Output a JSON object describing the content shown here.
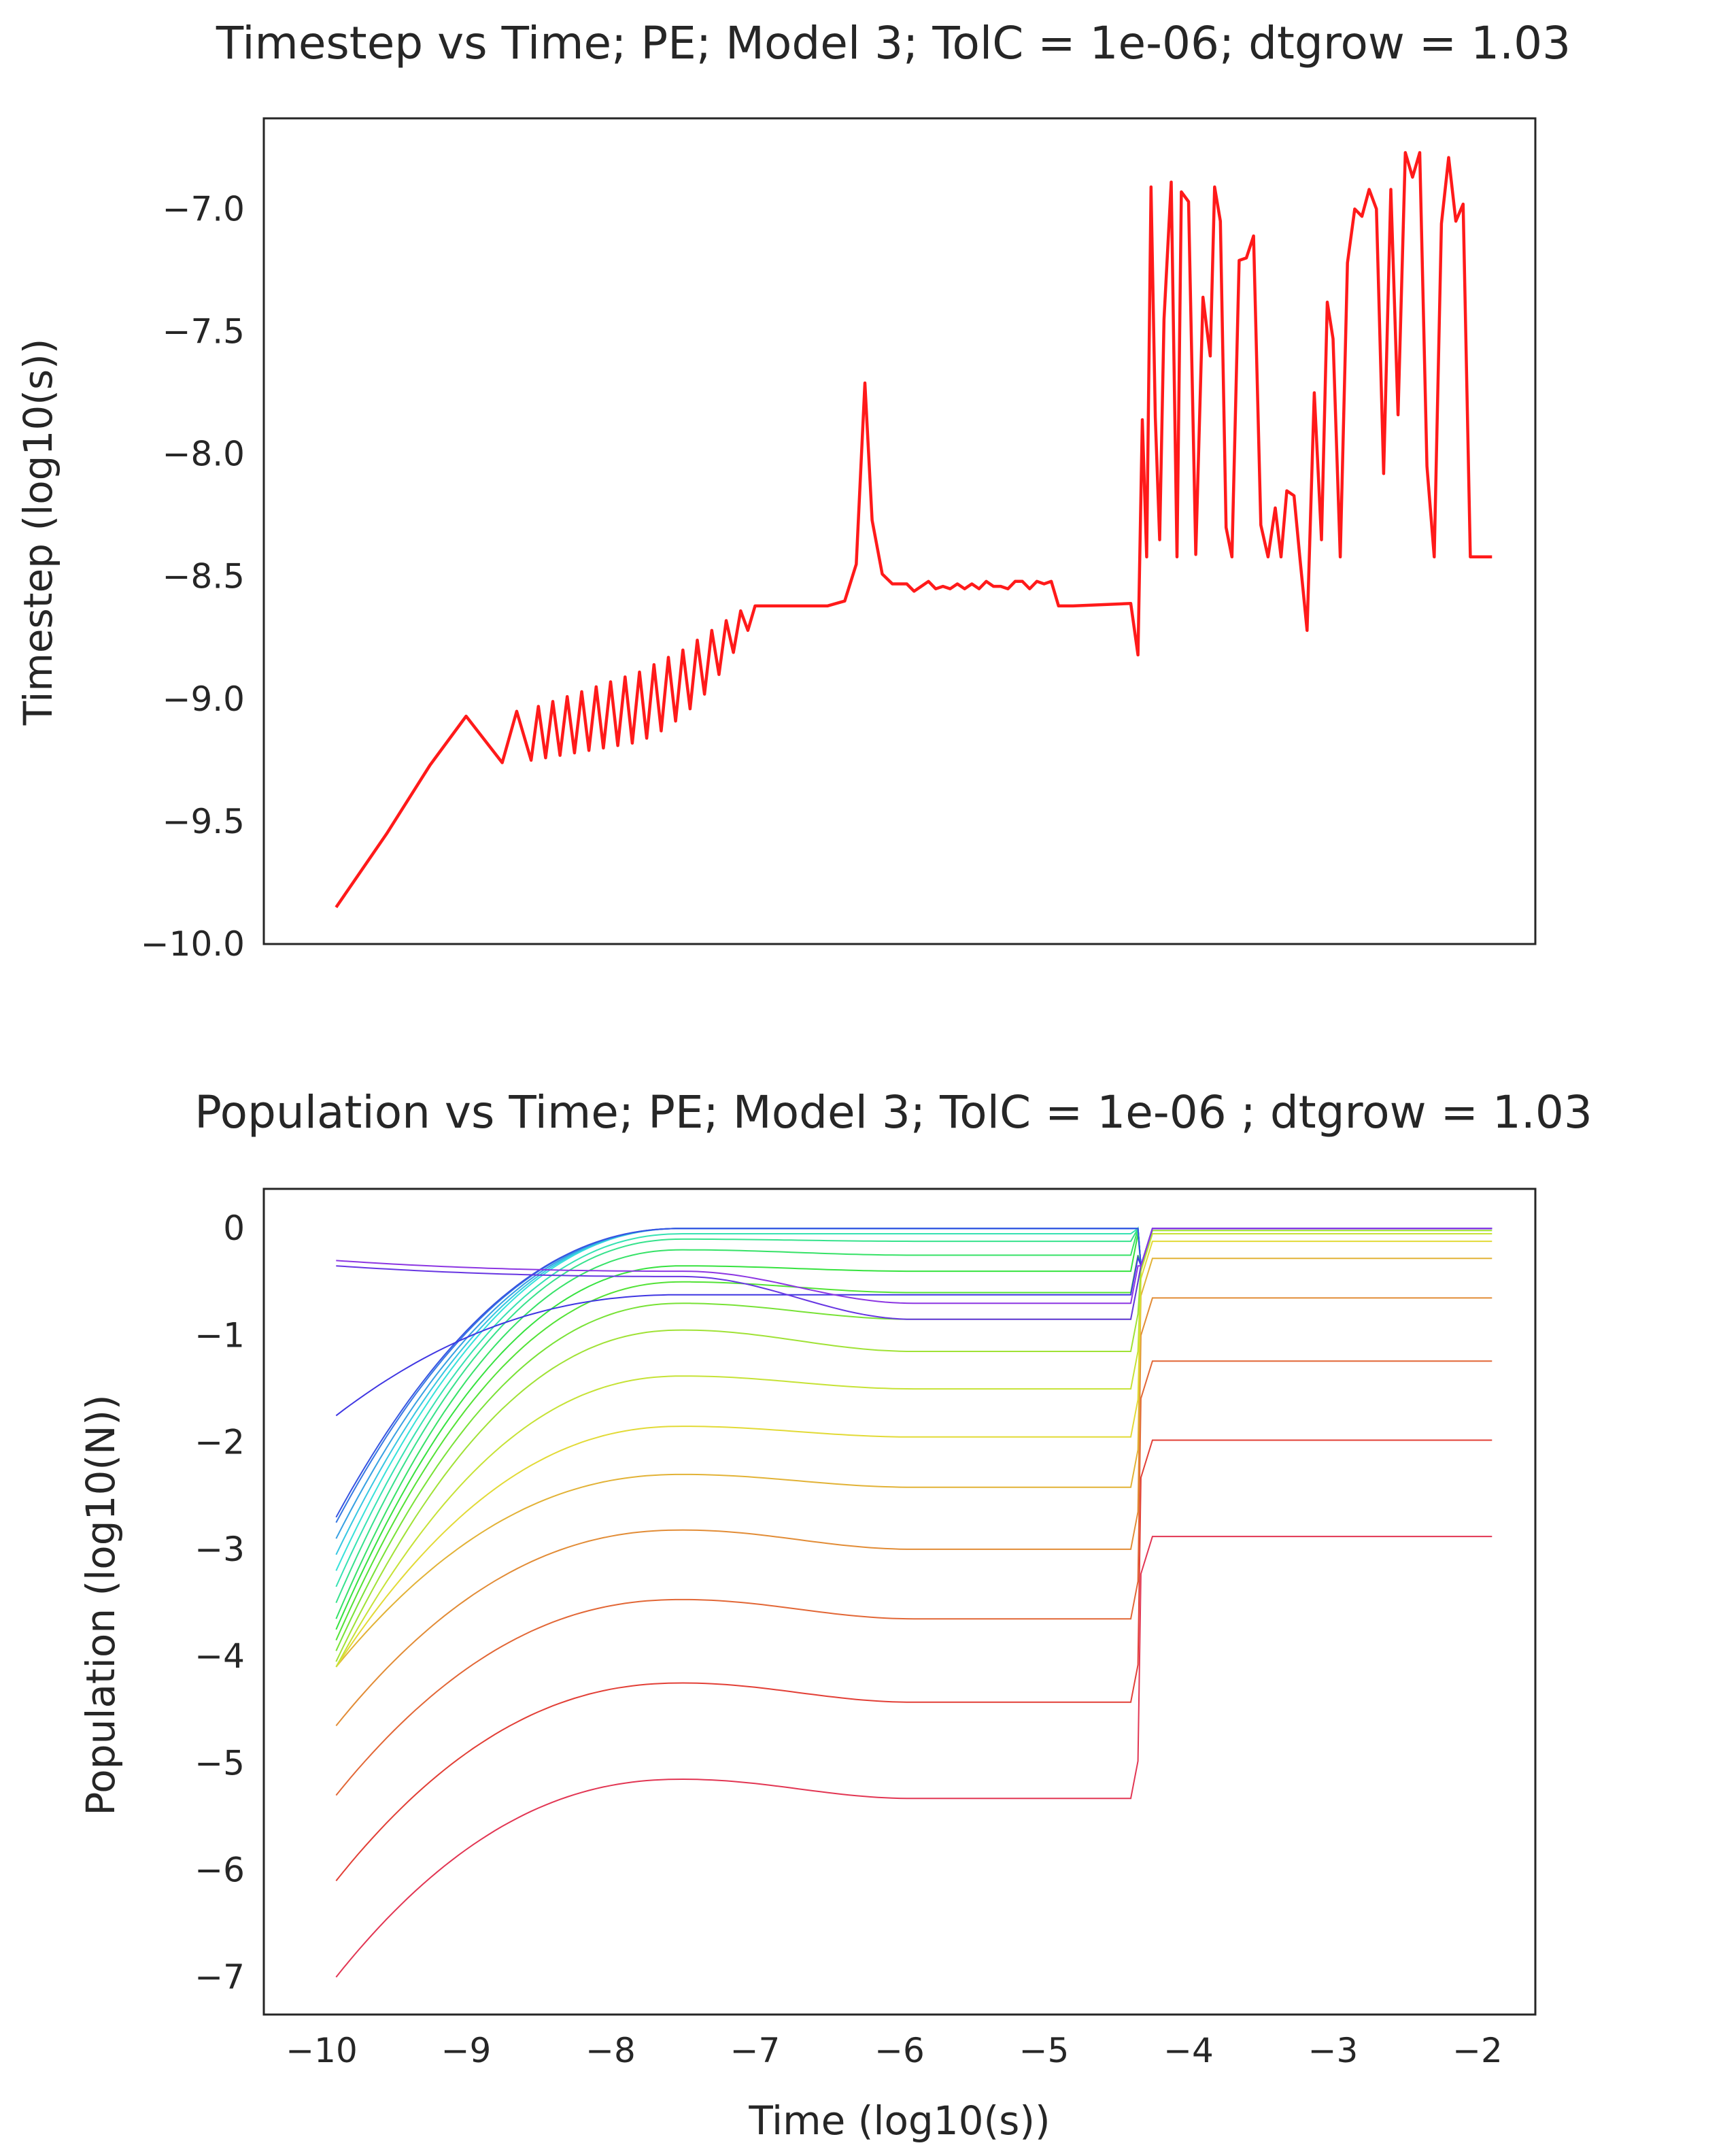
{
  "chart_data": [
    {
      "type": "line",
      "title": "Timestep vs Time; PE; Model 3; TolC = 1e-06; dtgrow = 1.03",
      "xlabel": "",
      "ylabel": "Timestep (log10(s))",
      "xlim": [
        -10.4,
        -1.6
      ],
      "ylim": [
        -10.0,
        -6.63
      ],
      "yticks": [
        -10.0,
        -9.5,
        -9.0,
        -8.5,
        -8.0,
        -7.5,
        -7.0
      ],
      "ytick_labels": [
        "−10.0",
        "−9.5",
        "−9.0",
        "−8.5",
        "−8.0",
        "−7.5",
        "−7.0"
      ],
      "grid": false,
      "color": "#ff1a1a",
      "series": [
        {
          "x": [
            -9.9,
            -9.55,
            -9.25,
            -9.0,
            -8.75,
            -8.65,
            -8.55,
            -8.5,
            -8.45,
            -8.4,
            -8.35,
            -8.3,
            -8.25,
            -8.2,
            -8.15,
            -8.1,
            -8.05,
            -8.0,
            -7.95,
            -7.9,
            -7.85,
            -7.8,
            -7.75,
            -7.7,
            -7.65,
            -7.6,
            -7.55,
            -7.5,
            -7.45,
            -7.4,
            -7.35,
            -7.3,
            -7.25,
            -7.2,
            -7.15,
            -7.1,
            -7.05,
            -7.0,
            -6.95,
            -6.5,
            -6.38,
            -6.3,
            -6.24,
            -6.19,
            -6.12,
            -6.05,
            -6.0,
            -5.95,
            -5.9,
            -5.85,
            -5.8,
            -5.75,
            -5.7,
            -5.65,
            -5.6,
            -5.55,
            -5.5,
            -5.45,
            -5.4,
            -5.35,
            -5.3,
            -5.25,
            -5.2,
            -5.15,
            -5.1,
            -5.05,
            -5.0,
            -4.95,
            -4.9,
            -4.85,
            -4.8,
            -4.4,
            -4.35,
            -4.32,
            -4.29,
            -4.26,
            -4.23,
            -4.2,
            -4.17,
            -4.12,
            -4.08,
            -4.05,
            -4.0,
            -3.95,
            -3.9,
            -3.85,
            -3.82,
            -3.78,
            -3.74,
            -3.7,
            -3.65,
            -3.6,
            -3.55,
            -3.5,
            -3.45,
            -3.4,
            -3.36,
            -3.32,
            -3.27,
            -3.23,
            -3.18,
            -3.13,
            -3.08,
            -3.04,
            -3.0,
            -2.95,
            -2.9,
            -2.85,
            -2.8,
            -2.75,
            -2.7,
            -2.65,
            -2.6,
            -2.55,
            -2.5,
            -2.45,
            -2.4,
            -2.35,
            -2.3,
            -2.25,
            -2.2,
            -2.15,
            -2.1,
            -2.05,
            -2.0,
            -1.95,
            -1.9
          ],
          "y": [
            -9.85,
            -9.55,
            -9.27,
            -9.07,
            -9.26,
            -9.05,
            -9.25,
            -9.03,
            -9.24,
            -9.01,
            -9.23,
            -8.99,
            -9.22,
            -8.97,
            -9.21,
            -8.95,
            -9.2,
            -8.93,
            -9.19,
            -8.91,
            -9.18,
            -8.89,
            -9.16,
            -8.86,
            -9.13,
            -8.83,
            -9.09,
            -8.8,
            -9.04,
            -8.76,
            -8.98,
            -8.72,
            -8.9,
            -8.68,
            -8.81,
            -8.64,
            -8.72,
            -8.62,
            -8.62,
            -8.62,
            -8.6,
            -8.45,
            -7.71,
            -8.27,
            -8.49,
            -8.53,
            -8.53,
            -8.53,
            -8.56,
            -8.54,
            -8.52,
            -8.55,
            -8.54,
            -8.55,
            -8.53,
            -8.55,
            -8.53,
            -8.55,
            -8.52,
            -8.54,
            -8.54,
            -8.55,
            -8.52,
            -8.52,
            -8.55,
            -8.52,
            -8.53,
            -8.52,
            -8.62,
            -8.62,
            -8.62,
            -8.61,
            -8.82,
            -7.86,
            -8.42,
            -6.91,
            -7.85,
            -8.35,
            -7.45,
            -6.89,
            -8.42,
            -6.93,
            -6.97,
            -8.41,
            -7.36,
            -7.6,
            -6.91,
            -7.05,
            -8.3,
            -8.42,
            -7.21,
            -7.2,
            -7.11,
            -8.29,
            -8.42,
            -8.22,
            -8.42,
            -8.15,
            -8.17,
            -8.42,
            -8.72,
            -7.75,
            -8.35,
            -7.38,
            -7.53,
            -8.42,
            -7.22,
            -7.0,
            -7.03,
            -6.92,
            -7.0,
            -8.08,
            -6.92,
            -7.84,
            -6.77,
            -6.87,
            -6.77,
            -8.05,
            -8.42,
            -7.06,
            -6.79,
            -7.05,
            -6.98,
            -8.42,
            -8.42,
            -8.42,
            -8.42
          ],
          "y_note_unused": []
        }
      ]
    },
    {
      "type": "line",
      "title": "Population vs Time; PE; Model 3; TolC = 1e-06 ; dtgrow = 1.03",
      "xlabel": "Time (log10(s))",
      "ylabel": "Population (log10(N))",
      "xlim": [
        -10.4,
        -1.6
      ],
      "ylim": [
        -7.35,
        0.37
      ],
      "xticks": [
        -10,
        -9,
        -8,
        -7,
        -6,
        -5,
        -4,
        -3,
        -2
      ],
      "xtick_labels": [
        "−10",
        "−9",
        "−8",
        "−7",
        "−6",
        "−5",
        "−4",
        "−3",
        "−2"
      ],
      "yticks": [
        -7,
        -6,
        -5,
        -4,
        -3,
        -2,
        -1,
        0
      ],
      "ytick_labels": [
        "−7",
        "−6",
        "−5",
        "−4",
        "−3",
        "−2",
        "−1",
        "0"
      ],
      "grid": false,
      "colormap": "rainbow",
      "x_start": -9.9,
      "x_jump": -4.33,
      "x_end": -1.9,
      "series": [
        {
          "y0": -7.0,
          "peak": -5.15,
          "plateau": -5.33,
          "final": -2.88
        },
        {
          "y0": -6.1,
          "peak": -4.25,
          "plateau": -4.43,
          "final": -1.98
        },
        {
          "y0": -5.3,
          "peak": -3.47,
          "plateau": -3.65,
          "final": -1.24
        },
        {
          "y0": -4.65,
          "peak": -2.82,
          "plateau": -3.0,
          "final": -0.65
        },
        {
          "y0": -4.1,
          "peak": -2.3,
          "plateau": -2.42,
          "final": -0.28
        },
        {
          "y0": -4.1,
          "peak": -1.85,
          "plateau": -1.95,
          "final": -0.12
        },
        {
          "y0": -4.1,
          "peak": -1.38,
          "plateau": -1.5,
          "final": -0.05
        },
        {
          "y0": -4.05,
          "peak": -0.95,
          "plateau": -1.15,
          "final": -0.02
        },
        {
          "y0": -3.95,
          "peak": -0.7,
          "plateau": -0.85,
          "final": 0.0
        },
        {
          "y0": -3.85,
          "peak": -0.5,
          "plateau": -0.6,
          "final": 0.0
        },
        {
          "y0": -3.75,
          "peak": -0.35,
          "plateau": -0.4,
          "final": 0.0
        },
        {
          "y0": -3.65,
          "peak": -0.2,
          "plateau": -0.25,
          "final": 0.0
        },
        {
          "y0": -3.5,
          "peak": -0.1,
          "plateau": -0.12,
          "final": 0.0
        },
        {
          "y0": -3.35,
          "peak": -0.05,
          "plateau": -0.05,
          "final": 0.0
        },
        {
          "y0": -3.2,
          "peak": 0.0,
          "plateau": 0.0,
          "final": 0.0
        },
        {
          "y0": -3.05,
          "peak": 0.0,
          "plateau": 0.0,
          "final": 0.0
        },
        {
          "y0": -2.9,
          "peak": 0.0,
          "plateau": 0.0,
          "final": 0.0
        },
        {
          "y0": -2.75,
          "peak": 0.0,
          "plateau": 0.0,
          "final": 0.0
        },
        {
          "y0": -2.7,
          "peak": 0.0,
          "plateau": 0.0,
          "final": 0.0
        },
        {
          "y0": -1.75,
          "peak": -0.62,
          "plateau": -0.62,
          "final": 0.0
        },
        {
          "y0": -0.35,
          "peak": -0.45,
          "plateau": -0.85,
          "final": 0.0
        },
        {
          "y0": -0.3,
          "peak": -0.4,
          "plateau": -0.7,
          "final": 0.0
        }
      ]
    }
  ]
}
